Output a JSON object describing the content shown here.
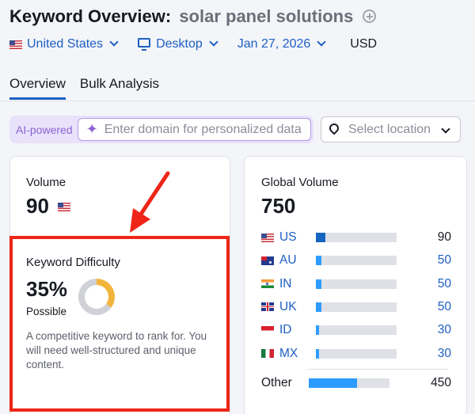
{
  "header": {
    "title": "Keyword Overview:",
    "keyword": "solar panel solutions",
    "country": "United States",
    "device": "Desktop",
    "date": "Jan 27, 2026",
    "currency": "USD"
  },
  "tabs": [
    {
      "label": "Overview",
      "active": true
    },
    {
      "label": "Bulk Analysis",
      "active": false
    }
  ],
  "ai_bar": {
    "badge": "AI-powered",
    "placeholder": "Enter domain for personalized data"
  },
  "location": {
    "placeholder": "Select location"
  },
  "volume": {
    "label": "Volume",
    "value": "90",
    "flag": "us-flag-icon"
  },
  "keyword_difficulty": {
    "label": "Keyword Difficulty",
    "value": "35%",
    "level": "Possible",
    "percent": 35,
    "description": "A competitive keyword to rank for. You will need well-structured and unique content.",
    "ring_color": "#f2b53b"
  },
  "global_volume": {
    "label": "Global Volume",
    "value": "750",
    "countries": [
      {
        "code": "US",
        "value": "90",
        "share": 0.12,
        "flag": "us"
      },
      {
        "code": "AU",
        "value": "50",
        "share": 0.07,
        "flag": "au"
      },
      {
        "code": "IN",
        "value": "50",
        "share": 0.07,
        "flag": "in"
      },
      {
        "code": "UK",
        "value": "50",
        "share": 0.07,
        "flag": "uk"
      },
      {
        "code": "ID",
        "value": "30",
        "share": 0.04,
        "flag": "id"
      },
      {
        "code": "MX",
        "value": "30",
        "share": 0.04,
        "flag": "mx"
      }
    ],
    "other": {
      "label": "Other",
      "value": "450",
      "share": 0.6
    }
  },
  "colors": {
    "accent": "#1d5fc2",
    "bar_fill": "#2d9cff",
    "bar_fill_us": "#1565c0",
    "highlight": "#ee2518"
  }
}
